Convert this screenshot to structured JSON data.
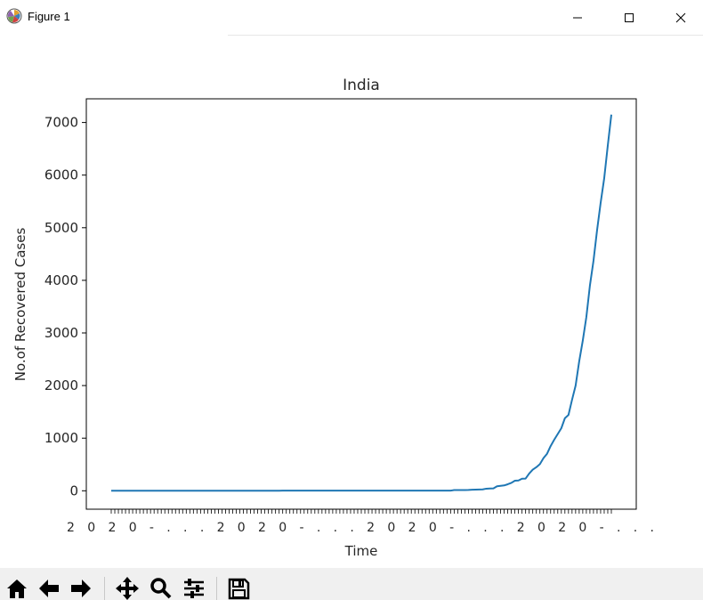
{
  "window": {
    "title": "Figure 1"
  },
  "toolbar": {
    "buttons": [
      {
        "name": "home",
        "icon": "home-icon"
      },
      {
        "name": "back",
        "icon": "arrow-left-icon"
      },
      {
        "name": "forward",
        "icon": "arrow-right-icon"
      },
      {
        "name": "pan",
        "icon": "move-icon"
      },
      {
        "name": "zoom",
        "icon": "magnifier-icon"
      },
      {
        "name": "configure-subplots",
        "icon": "sliders-icon"
      },
      {
        "name": "save",
        "icon": "floppy-disk-icon"
      }
    ]
  },
  "chart_data": {
    "type": "line",
    "title": "India",
    "xlabel": "Time",
    "ylabel": "No.of Recovered Cases",
    "ylim": [
      -350,
      7450
    ],
    "yticks": [
      0,
      1000,
      2000,
      3000,
      4000,
      5000,
      6000,
      7000
    ],
    "ytick_labels": [
      "0",
      "1000",
      "2000",
      "3000",
      "4000",
      "5000",
      "6000",
      "7000"
    ],
    "xtick_label_text": "2020-...",
    "grid": false,
    "series": [
      {
        "color": "#1f77b4",
        "values": [
          0,
          0,
          0,
          0,
          0,
          0,
          0,
          0,
          0,
          0,
          0,
          0,
          0,
          0,
          0,
          0,
          0,
          0,
          0,
          0,
          0,
          0,
          0,
          0,
          0,
          0,
          0,
          0,
          0,
          0,
          0,
          0,
          0,
          0,
          0,
          0,
          0,
          0,
          0,
          0,
          0,
          0,
          0,
          0,
          0,
          0,
          0,
          0,
          3,
          3,
          3,
          3,
          3,
          3,
          3,
          3,
          3,
          3,
          3,
          3,
          3,
          3,
          3,
          3,
          3,
          3,
          3,
          3,
          3,
          3,
          3,
          3,
          4,
          4,
          4,
          4,
          4,
          4,
          4,
          4,
          4,
          4,
          4,
          4,
          4,
          4,
          4,
          4,
          4,
          4,
          4,
          4,
          4,
          4,
          4,
          4,
          13,
          13,
          13,
          14,
          15,
          20,
          23,
          25,
          27,
          40,
          43,
          45,
          85,
          95,
          102,
          124,
          150,
          191,
          196,
          229,
          232,
          328,
          401,
          448,
          506,
          620,
          704,
          850,
          970,
          1080,
          1190,
          1380,
          1441,
          1730,
          2000,
          2460,
          2853,
          3300,
          3900,
          4370,
          4950,
          5470,
          5939,
          6560,
          7150
        ]
      }
    ]
  }
}
